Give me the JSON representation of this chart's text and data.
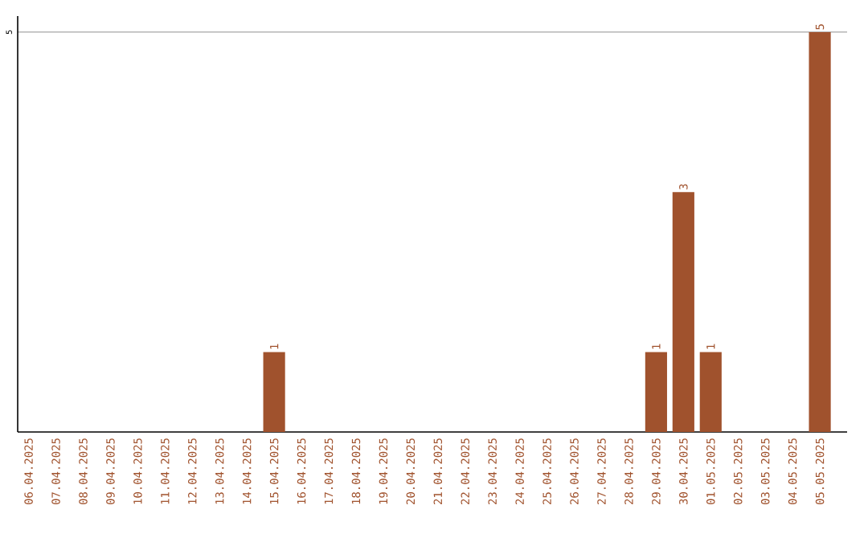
{
  "chart_data": {
    "type": "bar",
    "categories": [
      "06.04.2025",
      "07.04.2025",
      "08.04.2025",
      "09.04.2025",
      "10.04.2025",
      "11.04.2025",
      "12.04.2025",
      "13.04.2025",
      "14.04.2025",
      "15.04.2025",
      "16.04.2025",
      "17.04.2025",
      "18.04.2025",
      "19.04.2025",
      "20.04.2025",
      "21.04.2025",
      "22.04.2025",
      "23.04.2025",
      "24.04.2025",
      "25.04.2025",
      "26.04.2025",
      "27.04.2025",
      "28.04.2025",
      "29.04.2025",
      "30.04.2025",
      "01.05.2025",
      "02.05.2025",
      "03.05.2025",
      "04.05.2025",
      "05.05.2025"
    ],
    "values": [
      0,
      0,
      0,
      0,
      0,
      0,
      0,
      0,
      0,
      1,
      0,
      0,
      0,
      0,
      0,
      0,
      0,
      0,
      0,
      0,
      0,
      0,
      0,
      1,
      3,
      1,
      0,
      0,
      0,
      5
    ],
    "value_labels": [
      null,
      null,
      null,
      null,
      null,
      null,
      null,
      null,
      null,
      "1",
      null,
      null,
      null,
      null,
      null,
      null,
      null,
      null,
      null,
      null,
      null,
      null,
      null,
      "1",
      "3",
      "1",
      null,
      null,
      null,
      "5"
    ],
    "color": "#a0522d",
    "ylim": [
      0,
      5.2
    ],
    "yticks": [
      5
    ],
    "grid": "y"
  }
}
